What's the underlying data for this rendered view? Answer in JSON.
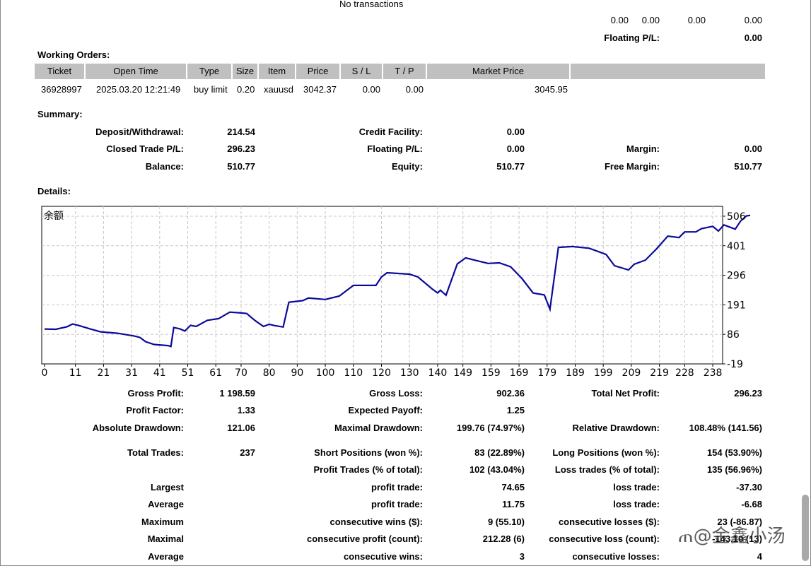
{
  "top": {
    "no_transactions": "No transactions",
    "values": [
      "0.00",
      "0.00",
      "0.00",
      "0.00"
    ],
    "floating_label": "Floating P/L:",
    "floating_value": "0.00"
  },
  "working_orders": {
    "title": "Working Orders:",
    "columns": [
      "Ticket",
      "Open Time",
      "Type",
      "Size",
      "Item",
      "Price",
      "S / L",
      "T / P",
      "Market Price"
    ],
    "row": {
      "ticket": "36928997",
      "open_time": "2025.03.20 12:21:49",
      "type": "buy limit",
      "size": "0.20",
      "item": "xauusd",
      "price": "3042.37",
      "sl": "0.00",
      "tp": "0.00",
      "market_price": "3045.95"
    }
  },
  "summary": {
    "title": "Summary:",
    "deposit_label": "Deposit/Withdrawal:",
    "deposit_value": "214.54",
    "credit_label": "Credit Facility:",
    "credit_value": "0.00",
    "closed_label": "Closed Trade P/L:",
    "closed_value": "296.23",
    "floating_label": "Floating P/L:",
    "floating_value": "0.00",
    "margin_label": "Margin:",
    "margin_value": "0.00",
    "balance_label": "Balance:",
    "balance_value": "510.77",
    "equity_label": "Equity:",
    "equity_value": "510.77",
    "free_margin_label": "Free Margin:",
    "free_margin_value": "510.77"
  },
  "details": {
    "title": "Details:"
  },
  "chart_data": {
    "type": "line",
    "title": "余额",
    "line_color": "#0a0a9a",
    "x_ticks": [
      "0",
      "11",
      "21",
      "31",
      "41",
      "51",
      "61",
      "70",
      "80",
      "90",
      "100",
      "110",
      "120",
      "130",
      "140",
      "149",
      "159",
      "169",
      "179",
      "189",
      "199",
      "209",
      "219",
      "228",
      "238"
    ],
    "x_range": [
      0,
      240
    ],
    "y_ticks": [
      "506",
      "401",
      "296",
      "191",
      "86",
      "-19"
    ],
    "ylim": [
      -19,
      541
    ],
    "points": [
      [
        0,
        105
      ],
      [
        4,
        104
      ],
      [
        8,
        113
      ],
      [
        10,
        123
      ],
      [
        12,
        118
      ],
      [
        16,
        106
      ],
      [
        20,
        95
      ],
      [
        26,
        90
      ],
      [
        32,
        80
      ],
      [
        34,
        75
      ],
      [
        36,
        60
      ],
      [
        39,
        50
      ],
      [
        44,
        46
      ],
      [
        45,
        43
      ],
      [
        46,
        110
      ],
      [
        48,
        106
      ],
      [
        50,
        98
      ],
      [
        52,
        118
      ],
      [
        54,
        114
      ],
      [
        58,
        136
      ],
      [
        62,
        142
      ],
      [
        66,
        165
      ],
      [
        70,
        162
      ],
      [
        72,
        160
      ],
      [
        75,
        135
      ],
      [
        78,
        114
      ],
      [
        80,
        122
      ],
      [
        82,
        117
      ],
      [
        85,
        112
      ],
      [
        87,
        200
      ],
      [
        92,
        206
      ],
      [
        94,
        215
      ],
      [
        100,
        210
      ],
      [
        105,
        222
      ],
      [
        110,
        260
      ],
      [
        118,
        260
      ],
      [
        120,
        290
      ],
      [
        122,
        305
      ],
      [
        130,
        300
      ],
      [
        133,
        290
      ],
      [
        138,
        248
      ],
      [
        140,
        233
      ],
      [
        141,
        243
      ],
      [
        143,
        225
      ],
      [
        147,
        336
      ],
      [
        150,
        358
      ],
      [
        154,
        348
      ],
      [
        158,
        338
      ],
      [
        162,
        340
      ],
      [
        166,
        326
      ],
      [
        170,
        285
      ],
      [
        174,
        233
      ],
      [
        178,
        226
      ],
      [
        180,
        175
      ],
      [
        183,
        395
      ],
      [
        188,
        398
      ],
      [
        194,
        392
      ],
      [
        200,
        370
      ],
      [
        203,
        330
      ],
      [
        208,
        315
      ],
      [
        210,
        335
      ],
      [
        214,
        350
      ],
      [
        218,
        390
      ],
      [
        222,
        435
      ],
      [
        226,
        430
      ],
      [
        228,
        450
      ],
      [
        232,
        450
      ],
      [
        234,
        462
      ],
      [
        238,
        470
      ],
      [
        240,
        453
      ],
      [
        242,
        475
      ],
      [
        246,
        460
      ],
      [
        248,
        490
      ],
      [
        250,
        507
      ],
      [
        252,
        510
      ]
    ]
  }
}
